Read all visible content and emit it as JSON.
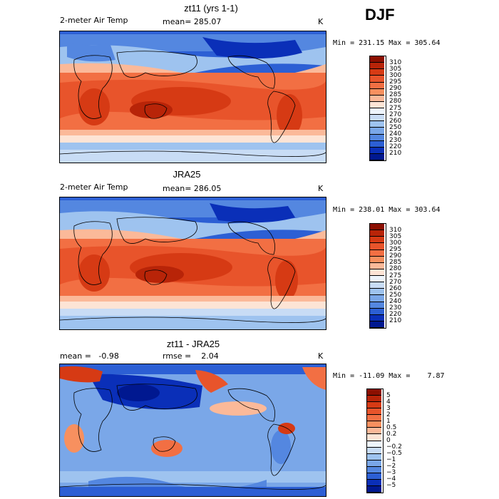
{
  "season": "DJF",
  "panels": [
    {
      "title": "zt11 (yrs 1-1)",
      "left_label": "2-meter Air Temp",
      "center_label": "mean= 285.07",
      "units": "K",
      "range": "Min = 231.15 Max = 305.64",
      "levels": [
        "310",
        "305",
        "300",
        "295",
        "290",
        "285",
        "280",
        "275",
        "270",
        "260",
        "250",
        "240",
        "230",
        "220",
        "210"
      ],
      "colors": [
        "#8c0f00",
        "#b82408",
        "#d63a14",
        "#e8542b",
        "#f26f43",
        "#f7905f",
        "#fbb999",
        "#fde4d5",
        "#eef5fc",
        "#c8dcf5",
        "#9ec3ef",
        "#7aa7e8",
        "#5487e0",
        "#2c5fd4",
        "#0a2fb8",
        "#001890"
      ]
    },
    {
      "title": "JRA25",
      "left_label": "2-meter Air Temp",
      "center_label": "mean= 286.05",
      "units": "K",
      "range": "Min = 238.01 Max = 303.64",
      "levels": [
        "310",
        "305",
        "300",
        "295",
        "290",
        "285",
        "280",
        "275",
        "270",
        "260",
        "250",
        "240",
        "230",
        "220",
        "210"
      ],
      "colors": [
        "#8c0f00",
        "#b82408",
        "#d63a14",
        "#e8542b",
        "#f26f43",
        "#f7905f",
        "#fbb999",
        "#fde4d5",
        "#eef5fc",
        "#c8dcf5",
        "#9ec3ef",
        "#7aa7e8",
        "#5487e0",
        "#2c5fd4",
        "#0a2fb8",
        "#001890"
      ]
    },
    {
      "title": "zt11 - JRA25",
      "left_label": "mean =   -0.98",
      "center_label": "rmse =    2.04",
      "units": "K",
      "range": "Min = -11.09 Max =    7.87",
      "levels": [
        "5",
        "4",
        "3",
        "2",
        "1",
        "0.5",
        "0.2",
        "0",
        "−0.2",
        "−0.5",
        "−1",
        "−2",
        "−3",
        "−4",
        "−5"
      ],
      "colors": [
        "#8c0f00",
        "#b82408",
        "#d63a14",
        "#e8542b",
        "#f26f43",
        "#f7905f",
        "#fbb999",
        "#fde4d5",
        "#eef5fc",
        "#c8dcf5",
        "#9ec3ef",
        "#7aa7e8",
        "#5487e0",
        "#2c5fd4",
        "#0a2fb8",
        "#001890"
      ]
    }
  ]
}
